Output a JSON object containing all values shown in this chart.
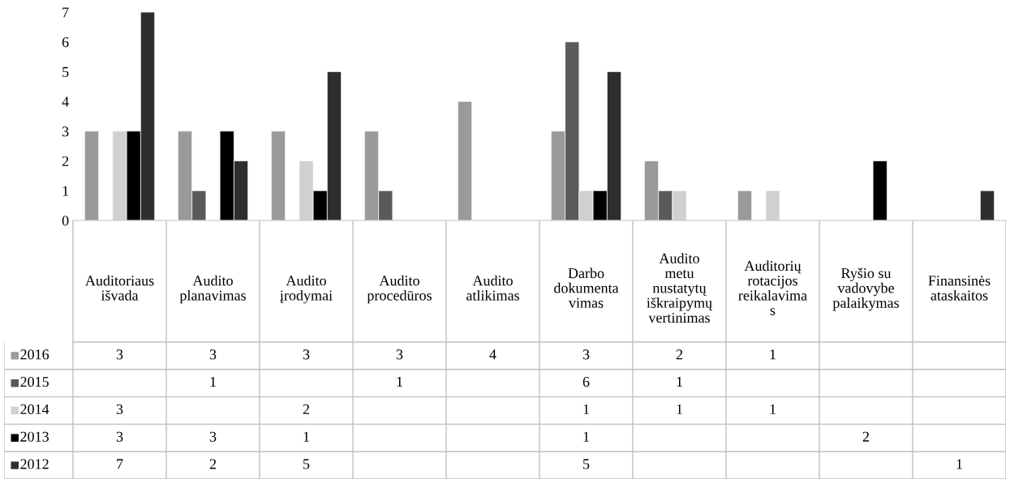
{
  "chart_data": {
    "type": "bar",
    "categories": [
      "Auditoriaus\nišvada",
      "Audito\nplanavimas",
      "Audito\nįrodymai",
      "Audito\nprocedūros",
      "Audito\natlikimas",
      "Darbo\ndokumenta\nvimas",
      "Audito\nmetu\nnustatytų\niškraipymų\nvertinimas",
      "Auditorių\nrotacijos\nreikalavima\ns",
      "Ryšio su\nvadovybe\npalaikymas",
      "Finansinės\nataskaitos"
    ],
    "series": [
      {
        "name": "2016",
        "color": "#9a9a9a",
        "values": [
          3,
          3,
          3,
          3,
          4,
          3,
          2,
          1,
          null,
          null
        ]
      },
      {
        "name": "2015",
        "color": "#5a5a5a",
        "values": [
          null,
          1,
          null,
          1,
          null,
          6,
          1,
          null,
          null,
          null
        ]
      },
      {
        "name": "2014",
        "color": "#d0d0d0",
        "values": [
          3,
          null,
          2,
          null,
          null,
          1,
          1,
          1,
          null,
          null
        ]
      },
      {
        "name": "2013",
        "color": "#000000",
        "values": [
          3,
          3,
          1,
          null,
          null,
          1,
          null,
          null,
          2,
          null
        ]
      },
      {
        "name": "2012",
        "color": "#2e2e2e",
        "values": [
          7,
          2,
          5,
          null,
          null,
          5,
          null,
          null,
          null,
          1
        ]
      }
    ],
    "ylim": [
      0,
      7
    ],
    "yticks": [
      0,
      1,
      2,
      3,
      4,
      5,
      6,
      7
    ],
    "grid": false,
    "legend": "bottom left",
    "data_labels": true
  }
}
